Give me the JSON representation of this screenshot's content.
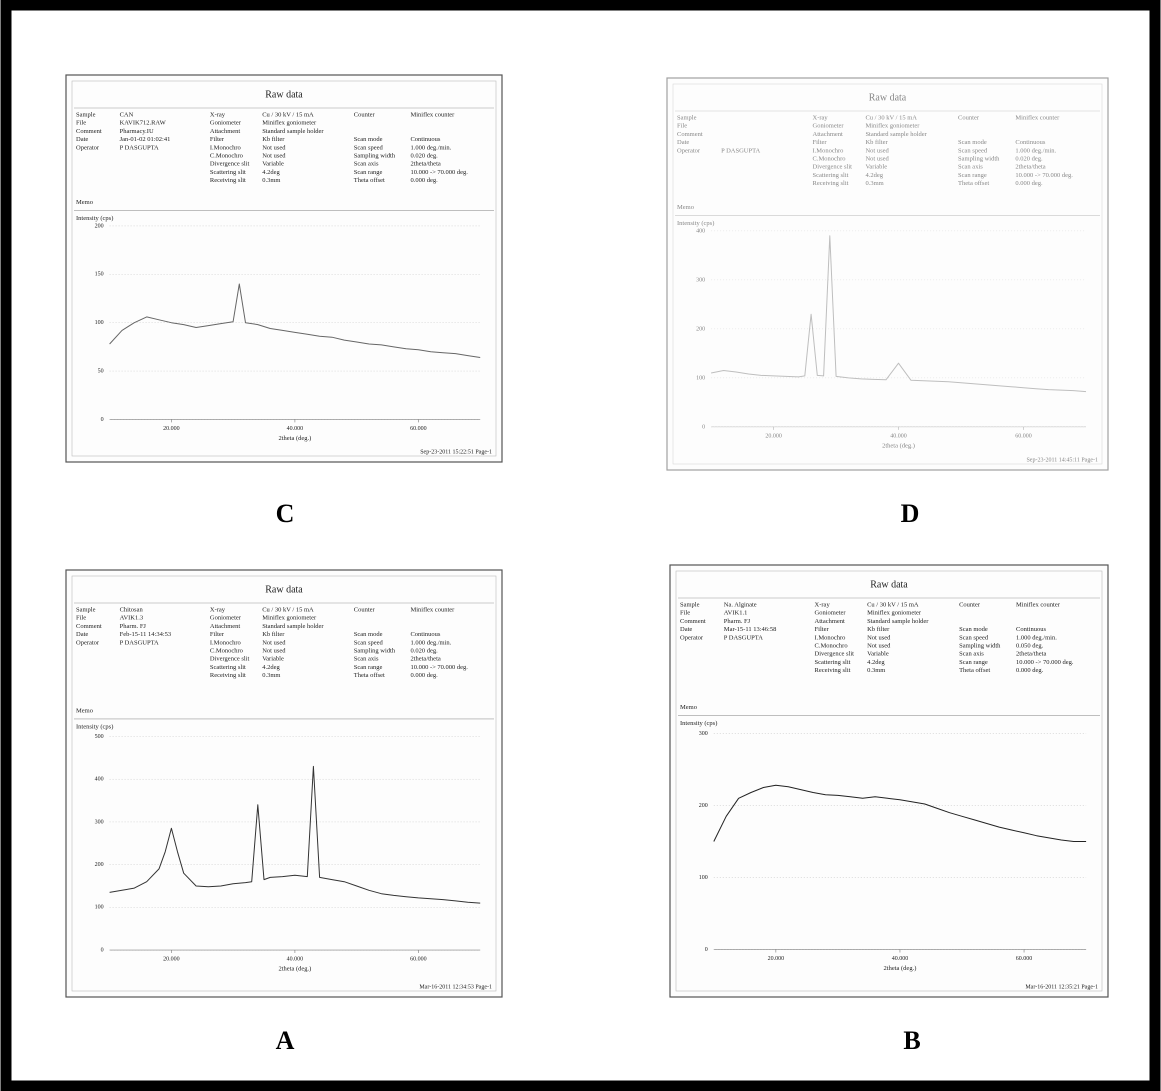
{
  "chart_data": [
    {
      "type": "line",
      "panel_label": "C",
      "title": "Raw data",
      "header": {
        "left": [
          {
            "label": "Sample",
            "value": "CAN"
          },
          {
            "label": "File",
            "value": "KAVIK712.RAW"
          },
          {
            "label": "Comment",
            "value": "Pharmacy.IU"
          },
          {
            "label": "Date",
            "value": "Jan-01-02 01:02:41"
          },
          {
            "label": "Operator",
            "value": "P DASGUPTA"
          }
        ],
        "middle": [
          {
            "label": "X-ray",
            "value": "Cu / 30 kV / 15 mA"
          },
          {
            "label": "Goniometer",
            "value": "Miniflex goniometer"
          },
          {
            "label": "Attachment",
            "value": "Standard sample holder"
          },
          {
            "label": "Filter",
            "value": "Kb filter"
          },
          {
            "label": "I.Monochro",
            "value": "Not used"
          },
          {
            "label": "C.Monochro",
            "value": "Not used"
          },
          {
            "label": "Divergence slit",
            "value": "Variable"
          },
          {
            "label": "Scattering slit",
            "value": "4.2deg"
          },
          {
            "label": "Receiving slit",
            "value": "0.3mm"
          }
        ],
        "right_top": [
          {
            "label": "Counter",
            "value": "Miniflex counter"
          }
        ],
        "right": [
          {
            "label": "Scan mode",
            "value": "Continuous"
          },
          {
            "label": "Scan speed",
            "value": "1.000 deg./min."
          },
          {
            "label": "Sampling width",
            "value": "0.020 deg."
          },
          {
            "label": "Scan axis",
            "value": "2theta/theta"
          },
          {
            "label": "Scan range",
            "value": "10.000 -> 70.000 deg."
          },
          {
            "label": "Theta offset",
            "value": "0.000 deg."
          }
        ]
      },
      "memo": "Memo",
      "ylabel": "Intensity (cps)",
      "xlabel": "2theta (deg.)",
      "footer": "Sep-23-2011 15:22:51 Page-1",
      "x": [
        10,
        12,
        14,
        16,
        18,
        20,
        22,
        24,
        26,
        28,
        30,
        31,
        32,
        34,
        36,
        38,
        40,
        42,
        44,
        46,
        48,
        50,
        52,
        54,
        56,
        58,
        60,
        62,
        64,
        66,
        68,
        70
      ],
      "values": [
        78,
        92,
        100,
        106,
        103,
        100,
        98,
        95,
        97,
        99,
        101,
        140,
        100,
        98,
        94,
        92,
        90,
        88,
        86,
        85,
        82,
        80,
        78,
        77,
        75,
        73,
        72,
        70,
        69,
        68,
        66,
        64
      ],
      "color": "#666666",
      "xlim": [
        10,
        70
      ],
      "ylim": [
        0,
        200
      ],
      "xticks": [
        {
          "value": 20,
          "label": "20.000"
        },
        {
          "value": 40,
          "label": "40.000"
        },
        {
          "value": 60,
          "label": "60.000"
        }
      ],
      "yticks": [
        0,
        50,
        100,
        150,
        200
      ],
      "grid": true
    },
    {
      "type": "line",
      "panel_label": "D",
      "title": "Raw data",
      "header": {
        "left": [
          {
            "label": "Sample"
          },
          {
            "label": "File"
          },
          {
            "label": "Comment"
          },
          {
            "label": "Date"
          },
          {
            "label": "Operator",
            "value": "P DASGUPTA"
          }
        ],
        "middle": [
          {
            "label": "X-ray",
            "value": "Cu / 30 kV / 15 mA"
          },
          {
            "label": "Goniometer",
            "value": "Miniflex goniometer"
          },
          {
            "label": "Attachment",
            "value": "Standard sample holder"
          },
          {
            "label": "Filter",
            "value": "Kb filter"
          },
          {
            "label": "I.Monochro",
            "value": "Not used"
          },
          {
            "label": "C.Monochro",
            "value": "Not used"
          },
          {
            "label": "Divergence slit",
            "value": "Variable"
          },
          {
            "label": "Scattering slit",
            "value": "4.2deg"
          },
          {
            "label": "Receiving slit",
            "value": "0.3mm"
          }
        ],
        "right_top": [
          {
            "label": "Counter",
            "value": "Miniflex counter"
          }
        ],
        "right": [
          {
            "label": "Scan mode",
            "value": "Continuous"
          },
          {
            "label": "Scan speed",
            "value": "1.000 deg./min."
          },
          {
            "label": "Sampling width",
            "value": "0.020 deg."
          },
          {
            "label": "Scan axis",
            "value": "2theta/theta"
          },
          {
            "label": "Scan range",
            "value": "10.000 -> 70.000 deg."
          },
          {
            "label": "Theta offset",
            "value": "0.000 deg."
          }
        ]
      },
      "memo": "Memo",
      "ylabel": "Intensity (cps)",
      "xlabel": "2theta (deg.)",
      "footer": "Sep-23-2011 14:45:11 Page-1",
      "x": [
        10,
        12,
        14,
        16,
        18,
        20,
        22,
        24,
        25,
        26,
        27,
        28,
        29,
        30,
        32,
        34,
        36,
        38,
        40,
        42,
        44,
        46,
        48,
        50,
        52,
        54,
        56,
        58,
        60,
        62,
        64,
        66,
        68,
        70
      ],
      "values": [
        110,
        115,
        112,
        108,
        105,
        104,
        103,
        102,
        104,
        230,
        105,
        104,
        390,
        103,
        100,
        98,
        97,
        96,
        130,
        95,
        94,
        93,
        92,
        90,
        88,
        86,
        84,
        82,
        80,
        78,
        76,
        75,
        74,
        72
      ],
      "color": "#8a8a8a",
      "xlim": [
        10,
        70
      ],
      "ylim": [
        0,
        400
      ],
      "xticks": [
        {
          "value": 20,
          "label": "20.000"
        },
        {
          "value": 40,
          "label": "40.000"
        },
        {
          "value": 60,
          "label": "60.000"
        }
      ],
      "yticks": [
        0,
        100,
        200,
        300,
        400
      ],
      "grid": true
    },
    {
      "type": "line",
      "panel_label": "A",
      "title": "Raw data",
      "header": {
        "left": [
          {
            "label": "Sample",
            "value": "Chitosan"
          },
          {
            "label": "File",
            "value": "AVIK1.3"
          },
          {
            "label": "Comment",
            "value": "Pharm. FJ"
          },
          {
            "label": "Date",
            "value": "Feb-15-11 14:34:53"
          },
          {
            "label": "Operator",
            "value": "P DASGUPTA"
          }
        ],
        "middle": [
          {
            "label": "X-ray",
            "value": "Cu / 30 kV / 15 mA"
          },
          {
            "label": "Goniometer",
            "value": "Miniflex goniometer"
          },
          {
            "label": "Attachment",
            "value": "Standard sample holder"
          },
          {
            "label": "Filter",
            "value": "Kb filter"
          },
          {
            "label": "I.Monochro",
            "value": "Not used"
          },
          {
            "label": "C.Monochro",
            "value": "Not used"
          },
          {
            "label": "Divergence slit",
            "value": "Variable"
          },
          {
            "label": "Scattering slit",
            "value": "4.2deg"
          },
          {
            "label": "Receiving slit",
            "value": "0.3mm"
          }
        ],
        "right_top": [
          {
            "label": "Counter",
            "value": "Miniflex counter"
          }
        ],
        "right": [
          {
            "label": "Scan mode",
            "value": "Continuous"
          },
          {
            "label": "Scan speed",
            "value": "1.000 deg./min."
          },
          {
            "label": "Sampling width",
            "value": "0.020 deg."
          },
          {
            "label": "Scan axis",
            "value": "2theta/theta"
          },
          {
            "label": "Scan range",
            "value": "10.000 -> 70.000 deg."
          },
          {
            "label": "Theta offset",
            "value": "0.000 deg."
          }
        ]
      },
      "memo": "Memo",
      "ylabel": "Intensity (cps)",
      "xlabel": "2theta (deg.)",
      "footer": "Mar-16-2011 12:34:53 Page-1",
      "x": [
        10,
        12,
        14,
        16,
        18,
        19,
        20,
        21,
        22,
        24,
        26,
        28,
        30,
        32,
        33,
        34,
        35,
        36,
        38,
        40,
        42,
        43,
        44,
        46,
        48,
        50,
        52,
        54,
        56,
        58,
        60,
        62,
        64,
        66,
        68,
        70
      ],
      "values": [
        135,
        140,
        145,
        160,
        190,
        230,
        285,
        230,
        180,
        150,
        148,
        150,
        155,
        158,
        160,
        340,
        165,
        170,
        172,
        175,
        172,
        430,
        170,
        165,
        160,
        150,
        140,
        132,
        128,
        125,
        122,
        120,
        118,
        115,
        112,
        110
      ],
      "color": "#333333",
      "xlim": [
        10,
        70
      ],
      "ylim": [
        0,
        500
      ],
      "xticks": [
        {
          "value": 20,
          "label": "20.000"
        },
        {
          "value": 40,
          "label": "40.000"
        },
        {
          "value": 60,
          "label": "60.000"
        }
      ],
      "yticks": [
        0,
        100,
        200,
        300,
        400,
        500
      ],
      "grid": true
    },
    {
      "type": "line",
      "panel_label": "B",
      "title": "Raw data",
      "header": {
        "left": [
          {
            "label": "Sample",
            "value": "Na. Alginate"
          },
          {
            "label": "File",
            "value": "AVIK1.1"
          },
          {
            "label": "Comment",
            "value": "Pharm. FJ"
          },
          {
            "label": "Date",
            "value": "Mar-15-11 13:46:58"
          },
          {
            "label": "Operator",
            "value": "P DASGUPTA"
          }
        ],
        "middle": [
          {
            "label": "X-ray",
            "value": "Cu / 30 kV / 15 mA"
          },
          {
            "label": "Goniometer",
            "value": "Miniflex goniometer"
          },
          {
            "label": "Attachment",
            "value": "Standard sample holder"
          },
          {
            "label": "Filter",
            "value": "Kb filter"
          },
          {
            "label": "I.Monochro",
            "value": "Not used"
          },
          {
            "label": "C.Monochro",
            "value": "Not used"
          },
          {
            "label": "Divergence slit",
            "value": "Variable"
          },
          {
            "label": "Scattering slit",
            "value": "4.2deg"
          },
          {
            "label": "Receiving slit",
            "value": "0.3mm"
          }
        ],
        "right_top": [
          {
            "label": "Counter",
            "value": "Miniflex counter"
          }
        ],
        "right": [
          {
            "label": "Scan mode",
            "value": "Continuous"
          },
          {
            "label": "Scan speed",
            "value": "1.000 deg./min."
          },
          {
            "label": "Sampling width",
            "value": "0.050 deg."
          },
          {
            "label": "Scan axis",
            "value": "2theta/theta"
          },
          {
            "label": "Scan range",
            "value": "10.000 -> 70.000 deg."
          },
          {
            "label": "Theta offset",
            "value": "0.000 deg."
          }
        ]
      },
      "memo": "Memo",
      "ylabel": "Intensity (cps)",
      "xlabel": "2theta (deg.)",
      "footer": "Mar-16-2011 12:35:21 Page-1",
      "x": [
        10,
        12,
        14,
        16,
        18,
        20,
        22,
        24,
        26,
        28,
        30,
        32,
        34,
        36,
        38,
        40,
        42,
        44,
        46,
        48,
        50,
        52,
        54,
        56,
        58,
        60,
        62,
        64,
        66,
        68,
        70
      ],
      "values": [
        150,
        185,
        210,
        218,
        225,
        228,
        226,
        222,
        218,
        215,
        214,
        212,
        210,
        212,
        210,
        208,
        205,
        202,
        196,
        190,
        185,
        180,
        175,
        170,
        166,
        162,
        158,
        155,
        152,
        150,
        150
      ],
      "color": "#222222",
      "xlim": [
        10,
        70
      ],
      "ylim": [
        0,
        300
      ],
      "xticks": [
        {
          "value": 20,
          "label": "20.000"
        },
        {
          "value": 40,
          "label": "40.000"
        },
        {
          "value": 60,
          "label": "60.000"
        }
      ],
      "yticks": [
        0,
        100,
        200,
        300
      ],
      "grid": true
    }
  ]
}
